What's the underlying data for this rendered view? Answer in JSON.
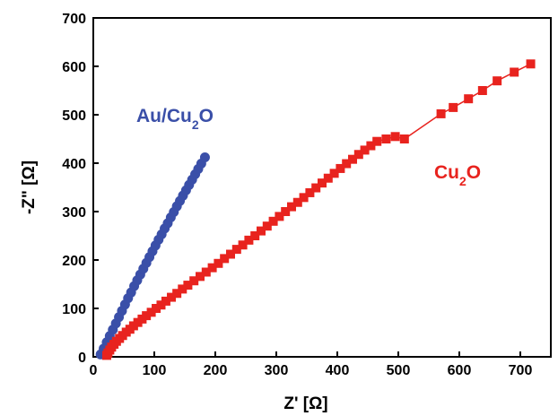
{
  "chart_data": {
    "type": "scatter",
    "title": "",
    "xlabel": "Z' [Ω]",
    "ylabel": "-Z\" [Ω]",
    "xlim": [
      0,
      750
    ],
    "ylim": [
      0,
      700
    ],
    "xticks": [
      0,
      100,
      200,
      300,
      400,
      500,
      600,
      700
    ],
    "yticks": [
      0,
      100,
      200,
      300,
      400,
      500,
      600,
      700
    ],
    "grid": false,
    "legend": "none (series labeled directly on plot)",
    "series": [
      {
        "name": "Au/Cu",
        "name_subscript": "2",
        "name_suffix": "O",
        "color": "#3a4fa8",
        "marker": "circle",
        "line": false,
        "x": [
          12,
          17,
          22,
          27,
          32,
          37,
          42,
          47,
          52,
          57,
          62,
          67,
          72,
          77,
          82,
          87,
          92,
          97,
          102,
          107,
          112,
          117,
          122,
          127,
          132,
          137,
          142,
          147,
          152,
          157,
          162,
          167,
          172,
          177,
          183
        ],
        "y": [
          5,
          17,
          30,
          43,
          56,
          69,
          82,
          95,
          108,
          121,
          133,
          146,
          158,
          170,
          182,
          194,
          206,
          218,
          230,
          242,
          253,
          265,
          276,
          288,
          299,
          311,
          322,
          333,
          344,
          355,
          366,
          377,
          388,
          399,
          412
        ]
      },
      {
        "name": "Cu",
        "name_subscript": "2",
        "name_suffix": "O",
        "color": "#e8231e",
        "marker": "square",
        "line": true,
        "x": [
          22,
          24,
          27,
          30,
          34,
          38,
          43,
          48,
          54,
          60,
          66,
          73,
          80,
          87,
          95,
          103,
          111,
          119,
          128,
          137,
          146,
          155,
          165,
          175,
          185,
          195,
          205,
          215,
          225,
          235,
          245,
          255,
          265,
          275,
          285,
          295,
          305,
          315,
          325,
          335,
          345,
          355,
          365,
          375,
          385,
          395,
          405,
          415,
          425,
          435,
          445,
          455,
          465,
          480,
          495,
          510,
          570,
          590,
          615,
          638,
          662,
          690,
          717
        ],
        "y": [
          3,
          8,
          14,
          20,
          26,
          32,
          38,
          44,
          51,
          57,
          64,
          71,
          78,
          85,
          92,
          100,
          107,
          115,
          123,
          131,
          140,
          148,
          157,
          166,
          175,
          184,
          193,
          203,
          212,
          222,
          231,
          241,
          250,
          260,
          270,
          280,
          290,
          300,
          310,
          319,
          329,
          339,
          349,
          359,
          369,
          379,
          389,
          399,
          408,
          418,
          427,
          436,
          445,
          450,
          455,
          450,
          502,
          515,
          533,
          550,
          570,
          588,
          605
        ]
      }
    ]
  }
}
